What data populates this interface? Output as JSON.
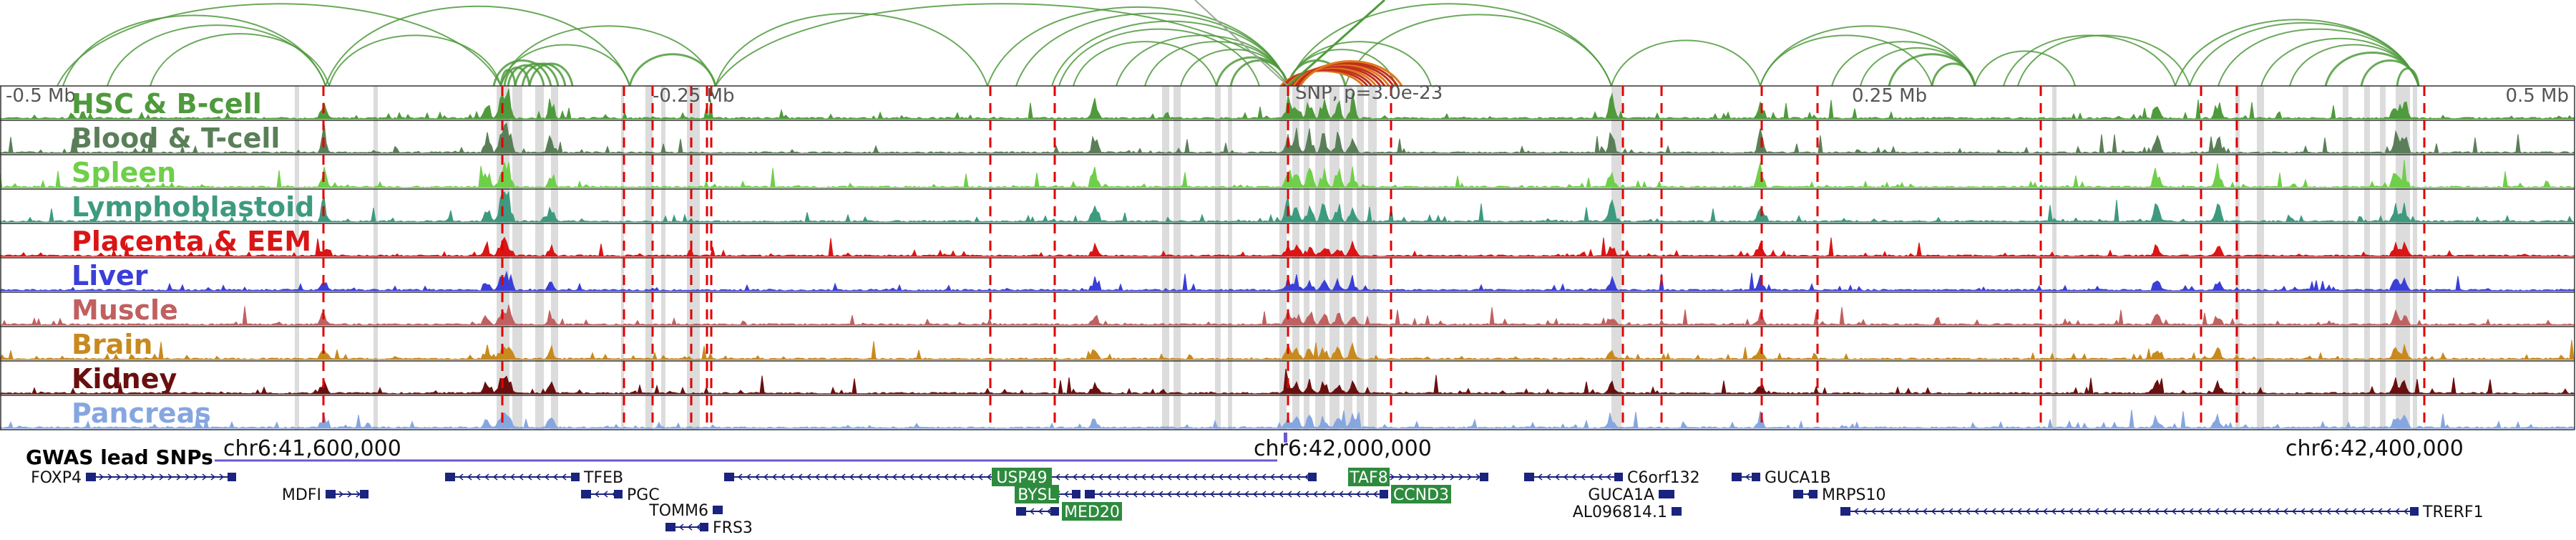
{
  "axis": {
    "left": "-0.5 Mb",
    "mid_left": "-0.25 Mb",
    "snp": "SNP, p=3.0e-23",
    "mid_right": "0.25 Mb",
    "right": "0.5 Mb"
  },
  "tracks": [
    {
      "name": "HSC & B-cell",
      "color": "#4f9a3c"
    },
    {
      "name": "Blood & T-cell",
      "color": "#5a7f58"
    },
    {
      "name": "Spleen",
      "color": "#6fcf4a"
    },
    {
      "name": "Lymphoblastoid",
      "color": "#3d9a7f"
    },
    {
      "name": "Placenta & EEM",
      "color": "#d91515"
    },
    {
      "name": "Liver",
      "color": "#3a3fd8"
    },
    {
      "name": "Muscle",
      "color": "#c06060"
    },
    {
      "name": "Brain",
      "color": "#c88a1e"
    },
    {
      "name": "Kidney",
      "color": "#6a0f0f"
    },
    {
      "name": "Pancreas",
      "color": "#86a6e0"
    }
  ],
  "gwas_label": "GWAS lead SNPs",
  "coords": [
    "chr6:41,600,000",
    "chr6:42,000,000",
    "chr6:42,400,000"
  ],
  "genes": [
    {
      "name": "FOXP4",
      "highlight": false
    },
    {
      "name": "MDFI",
      "highlight": false
    },
    {
      "name": "TFEB",
      "highlight": false
    },
    {
      "name": "PGC",
      "highlight": false
    },
    {
      "name": "TOMM6",
      "highlight": false
    },
    {
      "name": "FRS3",
      "highlight": false
    },
    {
      "name": "USP49",
      "highlight": true
    },
    {
      "name": "BYSL",
      "highlight": true
    },
    {
      "name": "MED20",
      "highlight": true
    },
    {
      "name": "TAF8",
      "highlight": true
    },
    {
      "name": "CCND3",
      "highlight": true
    },
    {
      "name": "C6orf132",
      "highlight": false
    },
    {
      "name": "GUCA1A",
      "highlight": false
    },
    {
      "name": "AL096814.1",
      "highlight": false
    },
    {
      "name": "GUCA1B",
      "highlight": false
    },
    {
      "name": "MRPS10",
      "highlight": false
    },
    {
      "name": "TRERF1",
      "highlight": false
    }
  ],
  "colors": {
    "arc": "#4f9a3c",
    "arc_highlight": "#c0301e",
    "boundary": "#e00000",
    "shade": "#d8d8d8",
    "gene": "#1a237e",
    "gene_highlight_bg": "#2e8b3e",
    "gwas": "#6a5acd"
  }
}
